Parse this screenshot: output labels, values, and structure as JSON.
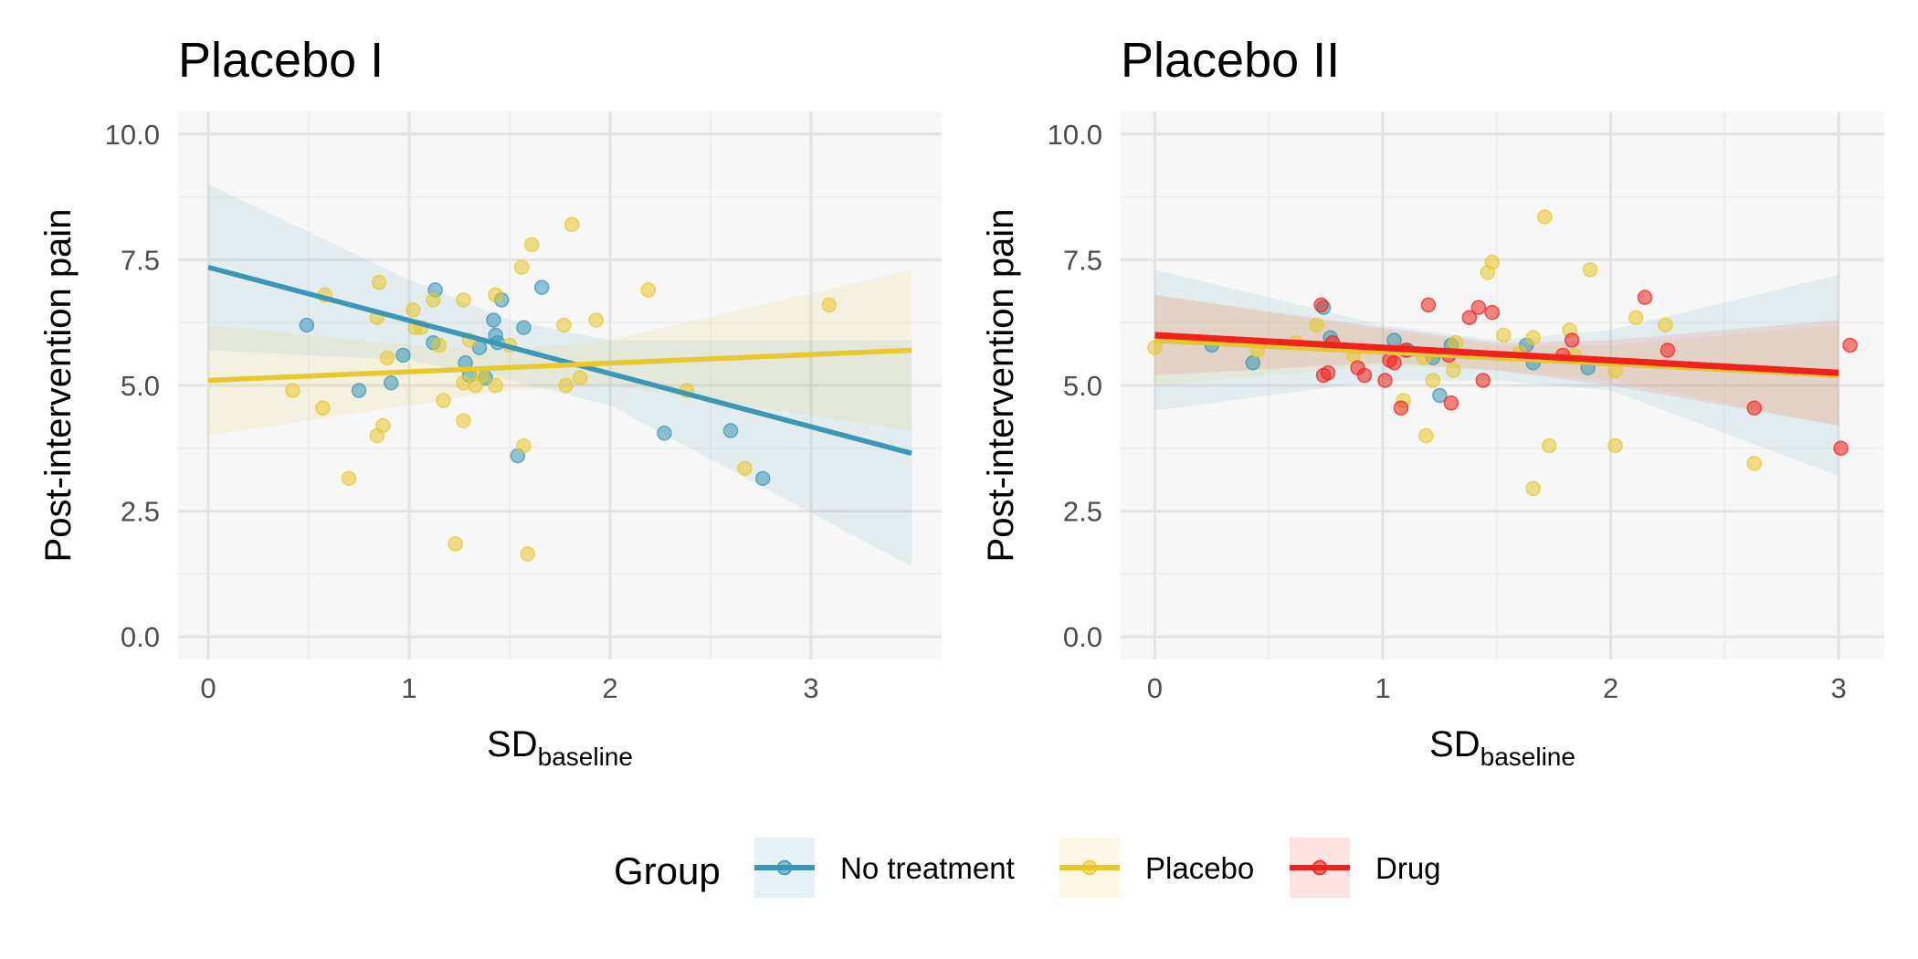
{
  "chart_data": [
    {
      "type": "scatter",
      "title": "Placebo I",
      "xlabel": "SD",
      "xlabel_subscript": "baseline",
      "ylabel": "Post-intervention pain",
      "xlim": [
        -0.15,
        3.65
      ],
      "ylim": [
        -0.45,
        10.45
      ],
      "x_ticks": [
        0,
        1,
        2,
        3
      ],
      "x_tick_labels": [
        "0",
        "1",
        "2",
        "3"
      ],
      "y_ticks": [
        0,
        2.5,
        5,
        7.5,
        10
      ],
      "y_tick_labels": [
        "0.0",
        "2.5",
        "5.0",
        "7.5",
        "10.0"
      ],
      "grid": true,
      "series": [
        {
          "name": "No treatment",
          "color": "#3a97b5",
          "points": [
            [
              0.49,
              6.2
            ],
            [
              0.75,
              4.9
            ],
            [
              0.91,
              5.05
            ],
            [
              0.97,
              5.6
            ],
            [
              1.12,
              5.85
            ],
            [
              1.13,
              6.9
            ],
            [
              1.28,
              5.45
            ],
            [
              1.3,
              5.2
            ],
            [
              1.35,
              5.75
            ],
            [
              1.38,
              5.15
            ],
            [
              1.42,
              6.3
            ],
            [
              1.43,
              6.0
            ],
            [
              1.44,
              5.85
            ],
            [
              1.46,
              6.7
            ],
            [
              1.54,
              3.6
            ],
            [
              1.57,
              6.15
            ],
            [
              1.66,
              6.95
            ],
            [
              2.27,
              4.05
            ],
            [
              2.6,
              4.1
            ],
            [
              2.76,
              3.15
            ]
          ],
          "fit": {
            "x": [
              0,
              3.5
            ],
            "y": [
              7.35,
              3.65
            ]
          },
          "ci_lower": {
            "x": [
              0,
              1,
              1.5,
              2,
              3.5
            ],
            "y": [
              5.7,
              5.5,
              5.1,
              4.6,
              1.4
            ]
          },
          "ci_upper": {
            "x": [
              0,
              1,
              1.5,
              2,
              3.5
            ],
            "y": [
              9.0,
              7.1,
              6.3,
              5.9,
              5.9
            ]
          }
        },
        {
          "name": "Placebo",
          "color": "#e8c82a",
          "points": [
            [
              0.42,
              4.9
            ],
            [
              0.57,
              4.55
            ],
            [
              0.58,
              6.8
            ],
            [
              0.7,
              3.15
            ],
            [
              0.84,
              4.0
            ],
            [
              0.84,
              6.35
            ],
            [
              0.85,
              7.05
            ],
            [
              0.87,
              4.2
            ],
            [
              0.89,
              5.55
            ],
            [
              1.02,
              6.5
            ],
            [
              1.03,
              6.15
            ],
            [
              1.06,
              6.15
            ],
            [
              1.12,
              6.7
            ],
            [
              1.15,
              5.8
            ],
            [
              1.17,
              4.7
            ],
            [
              1.23,
              1.85
            ],
            [
              1.27,
              6.7
            ],
            [
              1.27,
              4.3
            ],
            [
              1.27,
              5.05
            ],
            [
              1.3,
              5.9
            ],
            [
              1.33,
              5.0
            ],
            [
              1.36,
              5.2
            ],
            [
              1.43,
              6.8
            ],
            [
              1.43,
              5.0
            ],
            [
              1.5,
              5.8
            ],
            [
              1.56,
              7.35
            ],
            [
              1.57,
              3.8
            ],
            [
              1.59,
              1.65
            ],
            [
              1.61,
              7.8
            ],
            [
              1.77,
              6.2
            ],
            [
              1.78,
              5.0
            ],
            [
              1.81,
              8.2
            ],
            [
              1.85,
              5.15
            ],
            [
              1.93,
              6.3
            ],
            [
              2.19,
              6.9
            ],
            [
              2.38,
              4.9
            ],
            [
              2.67,
              3.35
            ],
            [
              3.09,
              6.6
            ]
          ],
          "fit": {
            "x": [
              0,
              3.5
            ],
            "y": [
              5.1,
              5.7
            ]
          },
          "ci_lower": {
            "x": [
              0,
              1,
              1.5,
              2,
              3.5
            ],
            "y": [
              4.0,
              4.6,
              4.9,
              5.0,
              4.1
            ]
          },
          "ci_upper": {
            "x": [
              0,
              1,
              1.5,
              2,
              3.5
            ],
            "y": [
              6.2,
              5.8,
              5.7,
              5.9,
              7.3
            ]
          }
        }
      ]
    },
    {
      "type": "scatter",
      "title": "Placebo II",
      "xlabel": "SD",
      "xlabel_subscript": "baseline",
      "ylabel": "Post-intervention pain",
      "xlim": [
        -0.15,
        3.2
      ],
      "ylim": [
        -0.45,
        10.45
      ],
      "x_ticks": [
        0,
        1,
        2,
        3
      ],
      "x_tick_labels": [
        "0",
        "1",
        "2",
        "3"
      ],
      "y_ticks": [
        0,
        2.5,
        5,
        7.5,
        10
      ],
      "y_tick_labels": [
        "0.0",
        "2.5",
        "5.0",
        "7.5",
        "10.0"
      ],
      "grid": true,
      "series": [
        {
          "name": "No treatment",
          "color": "#3a97b5",
          "points": [
            [
              0.25,
              5.8
            ],
            [
              0.43,
              5.45
            ],
            [
              0.74,
              6.55
            ],
            [
              0.77,
              5.95
            ],
            [
              1.05,
              5.9
            ],
            [
              1.11,
              5.7
            ],
            [
              1.22,
              5.55
            ],
            [
              1.25,
              4.8
            ],
            [
              1.3,
              5.8
            ],
            [
              1.63,
              5.8
            ],
            [
              1.66,
              5.45
            ],
            [
              1.9,
              5.35
            ]
          ],
          "fit": {
            "x": [
              0,
              3
            ],
            "y": [
              5.9,
              5.2
            ]
          },
          "ci_lower": {
            "x": [
              0,
              1,
              1.5,
              2,
              3
            ],
            "y": [
              4.5,
              5.1,
              5.1,
              4.9,
              3.2
            ]
          },
          "ci_upper": {
            "x": [
              0,
              1,
              1.5,
              2,
              3
            ],
            "y": [
              7.3,
              6.2,
              5.9,
              6.1,
              7.2
            ]
          }
        },
        {
          "name": "Placebo",
          "color": "#e8c82a",
          "points": [
            [
              0.0,
              5.75
            ],
            [
              0.45,
              5.7
            ],
            [
              0.62,
              5.85
            ],
            [
              0.71,
              6.2
            ],
            [
              0.87,
              5.6
            ],
            [
              1.09,
              4.7
            ],
            [
              1.18,
              5.55
            ],
            [
              1.19,
              4.0
            ],
            [
              1.22,
              5.1
            ],
            [
              1.31,
              5.3
            ],
            [
              1.32,
              5.85
            ],
            [
              1.46,
              7.25
            ],
            [
              1.48,
              7.45
            ],
            [
              1.53,
              6.0
            ],
            [
              1.6,
              5.65
            ],
            [
              1.66,
              2.95
            ],
            [
              1.66,
              5.95
            ],
            [
              1.71,
              8.35
            ],
            [
              1.73,
              3.8
            ],
            [
              1.82,
              6.1
            ],
            [
              1.84,
              5.6
            ],
            [
              1.91,
              7.3
            ],
            [
              2.02,
              3.8
            ],
            [
              2.02,
              5.3
            ],
            [
              2.11,
              6.35
            ],
            [
              2.24,
              6.2
            ],
            [
              2.63,
              3.45
            ]
          ],
          "fit": {
            "x": [
              0,
              3
            ],
            "y": [
              5.9,
              5.2
            ]
          },
          "ci_lower": {
            "x": [
              0,
              1,
              1.5,
              2,
              3
            ],
            "y": [
              5.0,
              5.4,
              5.3,
              5.1,
              4.2
            ]
          },
          "ci_upper": {
            "x": [
              0,
              1,
              1.5,
              2,
              3
            ],
            "y": [
              6.8,
              6.1,
              5.8,
              5.8,
              6.2
            ]
          }
        },
        {
          "name": "Drug",
          "color": "#f0221b",
          "points": [
            [
              0.73,
              6.6
            ],
            [
              0.74,
              5.2
            ],
            [
              0.76,
              5.25
            ],
            [
              0.78,
              5.85
            ],
            [
              0.89,
              5.35
            ],
            [
              0.92,
              5.2
            ],
            [
              1.01,
              5.1
            ],
            [
              1.03,
              5.5
            ],
            [
              1.05,
              5.45
            ],
            [
              1.08,
              4.55
            ],
            [
              1.1,
              5.7
            ],
            [
              1.2,
              6.6
            ],
            [
              1.29,
              5.6
            ],
            [
              1.3,
              4.65
            ],
            [
              1.38,
              6.35
            ],
            [
              1.42,
              6.55
            ],
            [
              1.44,
              5.1
            ],
            [
              1.48,
              6.45
            ],
            [
              1.79,
              5.6
            ],
            [
              1.83,
              5.9
            ],
            [
              2.15,
              6.75
            ],
            [
              2.25,
              5.7
            ],
            [
              2.63,
              4.55
            ],
            [
              3.01,
              3.75
            ],
            [
              3.05,
              5.8
            ]
          ],
          "fit": {
            "x": [
              0,
              3
            ],
            "y": [
              6.0,
              5.25
            ]
          },
          "ci_lower": {
            "x": [
              0,
              1,
              1.5,
              2,
              3
            ],
            "y": [
              5.2,
              5.45,
              5.3,
              5.0,
              4.2
            ]
          },
          "ci_upper": {
            "x": [
              0,
              1,
              1.5,
              2,
              3
            ],
            "y": [
              6.8,
              6.15,
              5.85,
              5.9,
              6.3
            ]
          }
        }
      ]
    }
  ],
  "legend": {
    "title": "Group",
    "placement": "bottom",
    "items": [
      {
        "name": "No treatment",
        "color": "#3a97b5"
      },
      {
        "name": "Placebo",
        "color": "#e8c82a"
      },
      {
        "name": "Drug",
        "color": "#f0221b"
      }
    ]
  }
}
